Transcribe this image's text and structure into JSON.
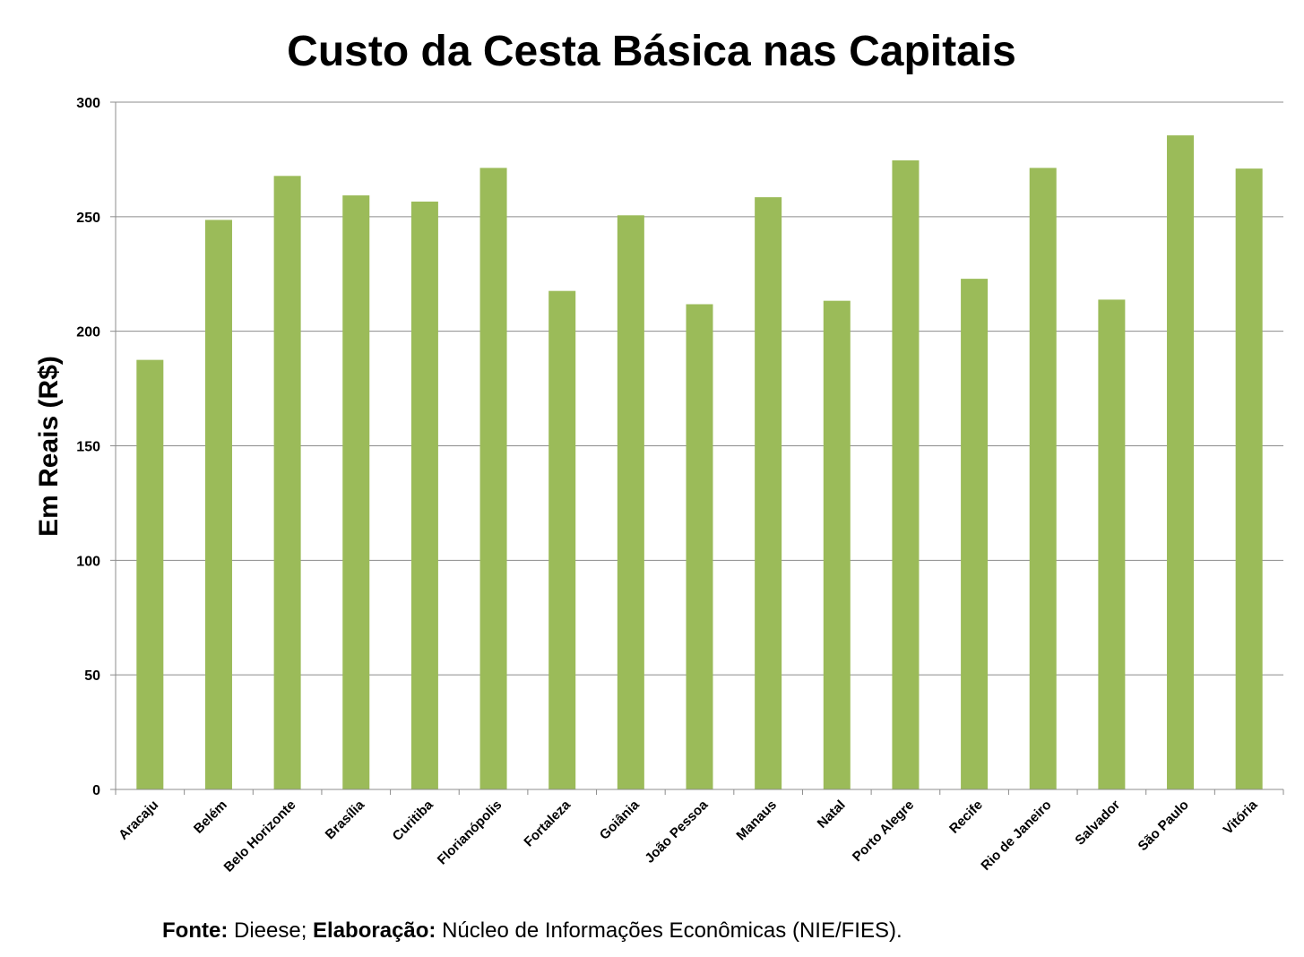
{
  "chart_data": {
    "type": "bar",
    "title": "Custo da Cesta Básica nas Capitais",
    "xlabel": "",
    "ylabel": "Em Reais (R$)",
    "ylim": [
      0,
      300
    ],
    "yticks": [
      0,
      50,
      100,
      150,
      200,
      250,
      300
    ],
    "grid": true,
    "legend": "none",
    "bar_color": "#9bbb59",
    "categories": [
      "Aracaju",
      "Belém",
      "Belo Horizonte",
      "Brasília",
      "Curitiba",
      "Florianópolis",
      "Fortaleza",
      "Goiânia",
      "João Pessoa",
      "Manaus",
      "Natal",
      "Porto Alegre",
      "Recife",
      "Rio de Janeiro",
      "Salvador",
      "São Paulo",
      "Vitória"
    ],
    "values": [
      187.5,
      248.6,
      267.8,
      259.3,
      256.6,
      271.3,
      217.6,
      250.6,
      211.8,
      258.5,
      213.3,
      274.6,
      222.9,
      271.3,
      213.8,
      285.5,
      271.0
    ]
  },
  "source": {
    "fonte_label": "Fonte:",
    "fonte_text": "Dieese;",
    "elaboracao_label": "Elaboração:",
    "elaboracao_text": "Núcleo de Informações Econômicas (NIE/FIES)."
  }
}
